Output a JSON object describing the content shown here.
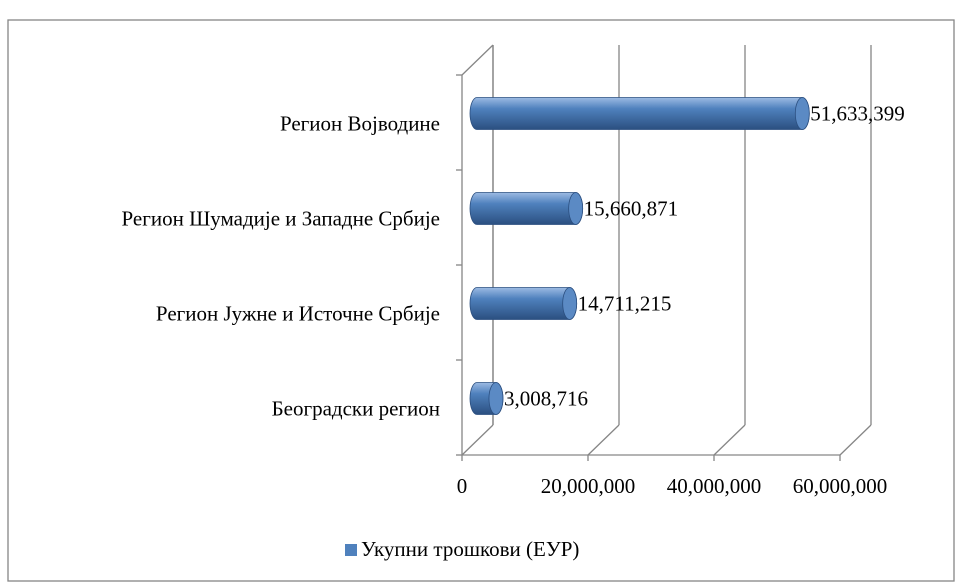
{
  "chart_data": {
    "type": "bar3d_horizontal",
    "categories": [
      "Регион Војводине",
      "Регион Шумадије и Западне Србије",
      "Регион Јужне и Источне Србије",
      "Београдски регион"
    ],
    "series": [
      {
        "name": "Укупни трошкови (ЕУР)",
        "color": "#4f81bd",
        "values": [
          51633399,
          15660871,
          14711215,
          3008716
        ],
        "value_labels": [
          "51,633,399",
          "15,660,871",
          "14,711,215",
          "3,008,716"
        ]
      }
    ],
    "xlim": [
      0,
      60000000
    ],
    "xticks": [
      0,
      {
        "value": 20000000,
        "label": "20,000,000"
      },
      {
        "value": 40000000,
        "label": "40,000,000"
      },
      {
        "value": 60000000,
        "label": "60,000,000"
      }
    ],
    "grid": true,
    "legend": "bottom"
  }
}
